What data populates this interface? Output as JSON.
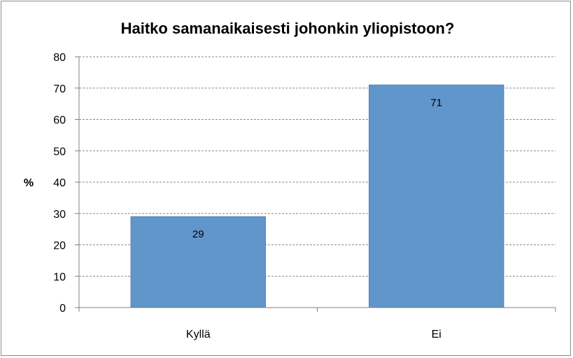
{
  "chart_data": {
    "type": "bar",
    "title": "Haitko samanaikaisesti johonkin yliopistoon?",
    "xlabel": "",
    "ylabel": "%",
    "categories": [
      "Kyllä",
      "Ei"
    ],
    "values": [
      29,
      71
    ],
    "data_labels": [
      "29",
      "71"
    ],
    "ylim": [
      0,
      80
    ],
    "yticks": [
      0,
      10,
      20,
      30,
      40,
      50,
      60,
      70,
      80
    ],
    "grid": true,
    "grid_style": "dashed",
    "bar_color": "#6196cb",
    "bar_edge_color": "#5080b8",
    "legend": "none"
  }
}
